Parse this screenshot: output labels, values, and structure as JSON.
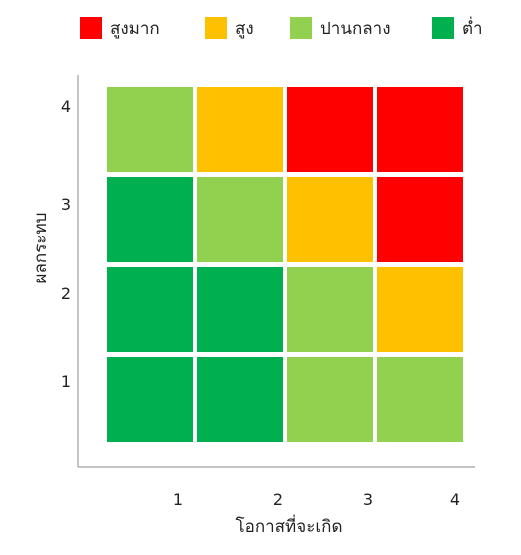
{
  "chart_data": {
    "type": "heatmap",
    "title": "",
    "xlabel": "โอกาสที่จะเกิด",
    "ylabel": "ผลกระทบ",
    "x_categories": [
      "1",
      "2",
      "3",
      "4"
    ],
    "y_categories": [
      "1",
      "2",
      "3",
      "4"
    ],
    "levels": [
      {
        "key": "very_high",
        "name": "สูงมาก",
        "color": "#ff0000"
      },
      {
        "key": "high",
        "name": "สูง",
        "color": "#ffc000"
      },
      {
        "key": "medium",
        "name": "ปานกลาง",
        "color": "#92d050"
      },
      {
        "key": "low",
        "name": "ต่ำ",
        "color": "#00b050"
      }
    ],
    "cells": [
      {
        "x": "1",
        "y": "4",
        "level": "medium"
      },
      {
        "x": "2",
        "y": "4",
        "level": "high"
      },
      {
        "x": "3",
        "y": "4",
        "level": "very_high"
      },
      {
        "x": "4",
        "y": "4",
        "level": "very_high"
      },
      {
        "x": "1",
        "y": "3",
        "level": "low"
      },
      {
        "x": "2",
        "y": "3",
        "level": "medium"
      },
      {
        "x": "3",
        "y": "3",
        "level": "high"
      },
      {
        "x": "4",
        "y": "3",
        "level": "very_high"
      },
      {
        "x": "1",
        "y": "2",
        "level": "low"
      },
      {
        "x": "2",
        "y": "2",
        "level": "low"
      },
      {
        "x": "3",
        "y": "2",
        "level": "medium"
      },
      {
        "x": "4",
        "y": "2",
        "level": "high"
      },
      {
        "x": "1",
        "y": "1",
        "level": "low"
      },
      {
        "x": "2",
        "y": "1",
        "level": "low"
      },
      {
        "x": "3",
        "y": "1",
        "level": "medium"
      },
      {
        "x": "4",
        "y": "1",
        "level": "medium"
      }
    ],
    "legend_position": "top",
    "grid": false
  }
}
